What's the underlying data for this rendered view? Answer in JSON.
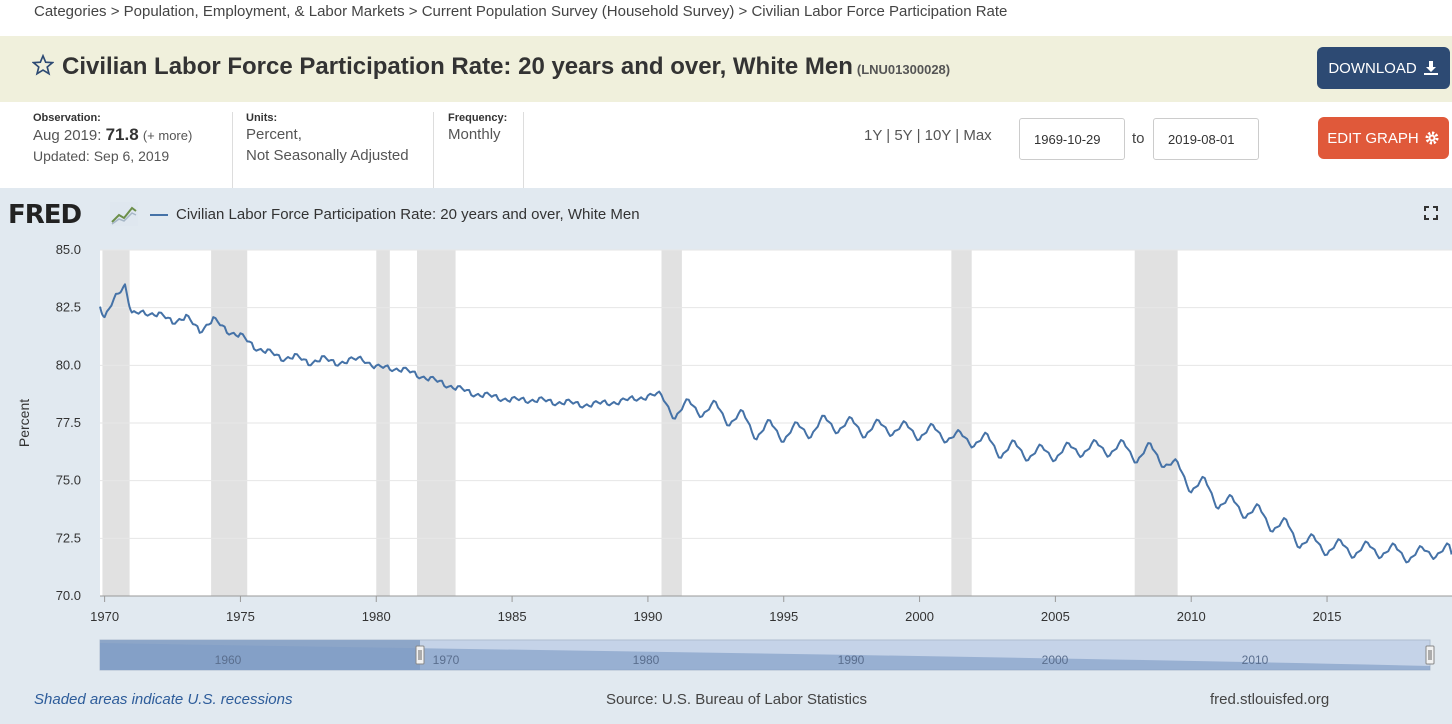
{
  "breadcrumb": {
    "text": "Categories > Population, Employment, & Labor Markets > Current Population Survey (Household Survey) > Civilian Labor Force Participation Rate"
  },
  "header": {
    "title": "Civilian Labor Force Participation Rate: 20 years and over, White Men",
    "series_id": "(LNU01300028)",
    "download_label": "DOWNLOAD"
  },
  "meta": {
    "observation_label": "Observation:",
    "observation_date": "Aug 2019:",
    "observation_value": "71.8",
    "observation_more": "(+ more)",
    "updated": "Updated: Sep 6, 2019",
    "units_label": "Units:",
    "units_line1": "Percent,",
    "units_line2": "Not Seasonally Adjusted",
    "frequency_label": "Frequency:",
    "frequency_value": "Monthly"
  },
  "controls": {
    "range_1y": "1Y",
    "range_5y": "5Y",
    "range_10y": "10Y",
    "range_max": "Max",
    "separator": "|",
    "start_date": "1969-10-29",
    "to_label": "to",
    "end_date": "2019-08-01",
    "edit_label": "EDIT GRAPH"
  },
  "graph": {
    "logo_text": "FRED",
    "legend_label": "Civilian Labor Force Participation Rate: 20 years and over, White Men"
  },
  "footer": {
    "note": "Shaded areas indicate U.S. recessions",
    "source": "Source: U.S. Bureau of Labor Statistics",
    "site": "fred.stlouisfed.org"
  },
  "colors": {
    "series_line": "#4572a7",
    "recession_shade": "#e1e1e1",
    "download_button": "#2d4a73",
    "edit_button": "#e0593a",
    "title_bar": "#f0f0dc"
  },
  "chart_data": {
    "type": "line",
    "ylabel": "Percent",
    "xlim": [
      1969.83,
      2019.6
    ],
    "ylim": [
      70.0,
      85.0
    ],
    "y_ticks": [
      70.0,
      72.5,
      75.0,
      77.5,
      80.0,
      82.5,
      85.0
    ],
    "x_ticks": [
      1970,
      1975,
      1980,
      1985,
      1990,
      1995,
      2000,
      2005,
      2010,
      2015
    ],
    "grid": true,
    "legend_position": "top-left",
    "recessions": [
      [
        1969.92,
        1970.92
      ],
      [
        1973.92,
        1975.25
      ],
      [
        1980.0,
        1980.5
      ],
      [
        1981.5,
        1982.92
      ],
      [
        1990.5,
        1991.25
      ],
      [
        2001.17,
        2001.92
      ],
      [
        2007.92,
        2009.5
      ]
    ],
    "series": [
      {
        "name": "Civilian Labor Force Participation Rate: 20 years and over, White Men",
        "points": [
          [
            1969.83,
            82.7
          ],
          [
            1970.0,
            82.3
          ],
          [
            1970.5,
            82.9
          ],
          [
            1970.75,
            83.5
          ],
          [
            1971.0,
            82.5
          ],
          [
            1971.5,
            82.0
          ],
          [
            1972.0,
            82.5
          ],
          [
            1972.5,
            81.6
          ],
          [
            1973.0,
            82.4
          ],
          [
            1973.5,
            81.2
          ],
          [
            1974.0,
            82.3
          ],
          [
            1974.5,
            81.2
          ],
          [
            1975.0,
            81.6
          ],
          [
            1975.5,
            80.5
          ],
          [
            1976.0,
            80.9
          ],
          [
            1976.5,
            80.0
          ],
          [
            1977.0,
            80.7
          ],
          [
            1977.5,
            79.8
          ],
          [
            1978.0,
            80.6
          ],
          [
            1978.5,
            79.8
          ],
          [
            1979.0,
            80.5
          ],
          [
            1979.5,
            80.0
          ],
          [
            1980.0,
            80.2
          ],
          [
            1980.5,
            79.6
          ],
          [
            1981.0,
            80.1
          ],
          [
            1981.5,
            79.3
          ],
          [
            1982.0,
            79.7
          ],
          [
            1982.5,
            78.9
          ],
          [
            1983.0,
            79.3
          ],
          [
            1983.5,
            78.5
          ],
          [
            1984.0,
            79.0
          ],
          [
            1984.5,
            78.3
          ],
          [
            1985.0,
            78.8
          ],
          [
            1985.5,
            78.2
          ],
          [
            1986.0,
            78.8
          ],
          [
            1986.5,
            78.1
          ],
          [
            1987.0,
            78.7
          ],
          [
            1987.5,
            78.0
          ],
          [
            1988.0,
            78.6
          ],
          [
            1988.5,
            78.1
          ],
          [
            1989.0,
            78.7
          ],
          [
            1989.5,
            78.3
          ],
          [
            1990.0,
            78.9
          ],
          [
            1990.5,
            78.5
          ],
          [
            1991.0,
            77.9
          ],
          [
            1991.5,
            78.3
          ],
          [
            1992.0,
            78.0
          ],
          [
            1992.5,
            78.2
          ],
          [
            1993.0,
            77.6
          ],
          [
            1993.5,
            77.8
          ],
          [
            1994.0,
            77.0
          ],
          [
            1994.5,
            77.4
          ],
          [
            1995.0,
            76.9
          ],
          [
            1995.5,
            77.3
          ],
          [
            1996.0,
            77.1
          ],
          [
            1996.5,
            77.6
          ],
          [
            1997.0,
            77.3
          ],
          [
            1997.5,
            77.5
          ],
          [
            1998.0,
            77.1
          ],
          [
            1998.5,
            77.4
          ],
          [
            1999.0,
            77.2
          ],
          [
            1999.5,
            77.3
          ],
          [
            2000.0,
            77.0
          ],
          [
            2000.5,
            77.2
          ],
          [
            2001.0,
            76.9
          ],
          [
            2001.5,
            76.9
          ],
          [
            2002.0,
            76.7
          ],
          [
            2002.5,
            76.8
          ],
          [
            2003.0,
            76.2
          ],
          [
            2003.5,
            76.5
          ],
          [
            2004.0,
            76.1
          ],
          [
            2004.5,
            76.3
          ],
          [
            2005.0,
            76.1
          ],
          [
            2005.5,
            76.4
          ],
          [
            2006.0,
            76.3
          ],
          [
            2006.5,
            76.5
          ],
          [
            2007.0,
            76.3
          ],
          [
            2007.5,
            76.5
          ],
          [
            2008.0,
            76.0
          ],
          [
            2008.5,
            76.4
          ],
          [
            2009.0,
            75.8
          ],
          [
            2009.5,
            75.6
          ],
          [
            2010.0,
            74.7
          ],
          [
            2010.5,
            74.9
          ],
          [
            2011.0,
            74.0
          ],
          [
            2011.5,
            74.1
          ],
          [
            2012.0,
            73.6
          ],
          [
            2012.5,
            73.7
          ],
          [
            2013.0,
            73.0
          ],
          [
            2013.5,
            73.1
          ],
          [
            2014.0,
            72.3
          ],
          [
            2014.5,
            72.4
          ],
          [
            2015.0,
            72.0
          ],
          [
            2015.5,
            72.2
          ],
          [
            2016.0,
            71.9
          ],
          [
            2016.5,
            72.1
          ],
          [
            2017.0,
            71.9
          ],
          [
            2017.5,
            72.0
          ],
          [
            2018.0,
            71.7
          ],
          [
            2018.5,
            71.9
          ],
          [
            2019.0,
            71.9
          ],
          [
            2019.5,
            72.0
          ],
          [
            2019.58,
            71.8
          ]
        ]
      }
    ],
    "navigator": {
      "labels": [
        "1960",
        "1970",
        "1980",
        "1990",
        "2000",
        "2010"
      ]
    }
  }
}
